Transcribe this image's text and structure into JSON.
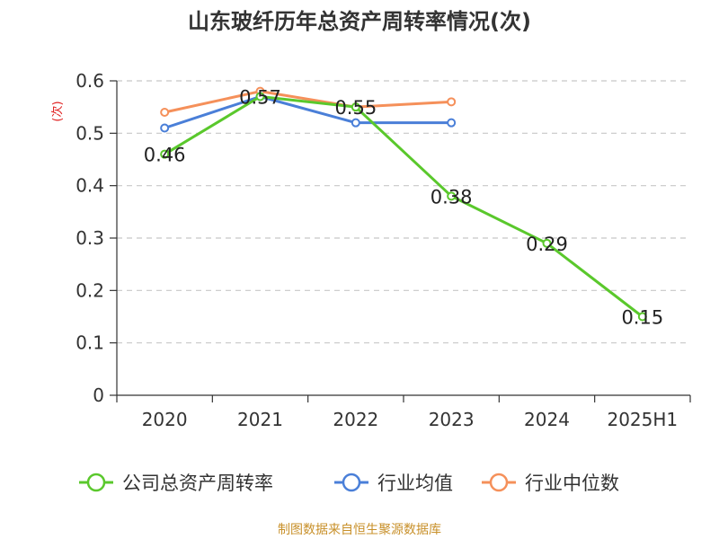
{
  "chart_data": {
    "type": "line",
    "title": "山东玻纤历年总资产周转率情况(次)",
    "ylabel": "(次)",
    "xlabel": "",
    "categories": [
      "2020",
      "2021",
      "2022",
      "2023",
      "2024",
      "2025H1"
    ],
    "ylim": [
      0,
      0.6
    ],
    "yticks": [
      "0",
      "0.1",
      "0.2",
      "0.3",
      "0.4",
      "0.5",
      "0.6"
    ],
    "grid": true,
    "legend_position": "bottom",
    "series": [
      {
        "name": "公司总资产周转率",
        "color": "#5ac82c",
        "values": [
          0.46,
          0.57,
          0.55,
          0.38,
          0.29,
          0.15
        ],
        "labels": [
          "0.46",
          "0.57",
          "0.55",
          "0.38",
          "0.29",
          "0.15"
        ]
      },
      {
        "name": "行业均值",
        "color": "#4a7fd8",
        "values": [
          0.51,
          0.57,
          0.52,
          0.52,
          null,
          null
        ]
      },
      {
        "name": "行业中位数",
        "color": "#f5905a",
        "values": [
          0.54,
          0.58,
          0.55,
          0.56,
          null,
          null
        ]
      }
    ]
  },
  "source": "制图数据来自恒生聚源数据库"
}
